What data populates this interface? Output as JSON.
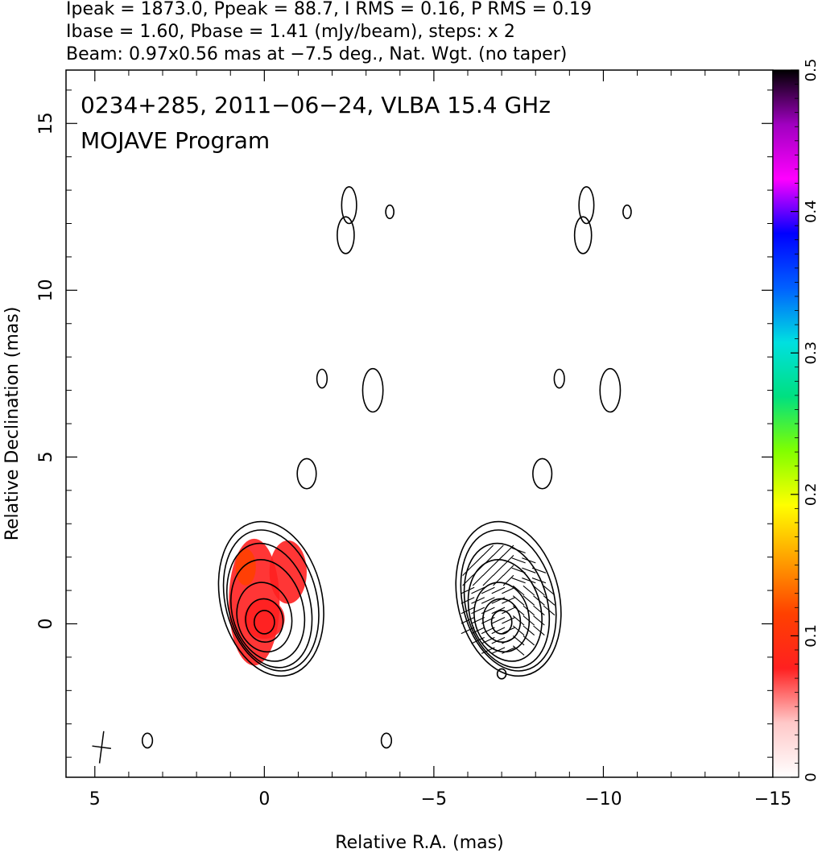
{
  "header": {
    "line1": "Ipeak = 1873.0, Ppeak = 88.7, I RMS = 0.16, P RMS = 0.19",
    "line2": "Ibase = 1.60, Pbase = 1.41 (mJy/beam), steps: x 2",
    "line3": "Beam: 0.97x0.56 mas at −7.5 deg., Nat. Wgt. (no taper)"
  },
  "plot_text": {
    "source_line": "0234+285, 2011−06−24, VLBA 15.4 GHz",
    "program_line": "MOJAVE Program"
  },
  "chart_data": {
    "type": "heatmap",
    "title": "0234+285, 2011−06−24, VLBA 15.4 GHz",
    "subtitle": "MOJAVE Program",
    "xlabel": "Relative R.A. (mas)",
    "ylabel": "Relative Declination (mas)",
    "xlim": [
      5.85,
      -15.0
    ],
    "ylim": [
      -4.6,
      16.6
    ],
    "x_ticks": [
      5,
      0,
      -5,
      -10,
      -15
    ],
    "x_tick_labels": [
      "5",
      "0",
      "−5",
      "−10",
      "−15"
    ],
    "y_ticks": [
      0,
      5,
      10,
      15
    ],
    "y_tick_labels": [
      "0",
      "5",
      "10",
      "15"
    ],
    "grid": false,
    "colorbar": {
      "placement": "right",
      "range": [
        0,
        0.5
      ],
      "ticks": [
        0,
        0.1,
        0.2,
        0.3,
        0.4,
        0.5
      ],
      "tick_labels": [
        "0",
        "0.1",
        "0.2",
        "0.3",
        "0.4",
        "0.5"
      ],
      "colors": [
        "#ffffff",
        "#ffc8c8",
        "#ff2020",
        "#ff4000",
        "#ffa000",
        "#ffff00",
        "#80ff00",
        "#00e080",
        "#00e0e0",
        "#0060ff",
        "#0000ff",
        "#ff00ff",
        "#a000c0",
        "#000000"
      ]
    },
    "panels": [
      {
        "name": "Stokes I contours with fractional polarization",
        "x_offset": 0,
        "contours": [
          {
            "cx": 0.0,
            "cy": 0.05,
            "rx": 0.3,
            "ry": 0.35,
            "angle": 0
          },
          {
            "cx": 0.0,
            "cy": 0.1,
            "rx": 0.55,
            "ry": 0.65,
            "angle": -8
          },
          {
            "cx": 0.0,
            "cy": 0.2,
            "rx": 0.8,
            "ry": 1.05,
            "angle": -12
          },
          {
            "cx": -0.1,
            "cy": 0.4,
            "rx": 1.05,
            "ry": 1.55,
            "angle": -15
          },
          {
            "cx": -0.15,
            "cy": 0.55,
            "rx": 1.2,
            "ry": 1.9,
            "angle": -15
          },
          {
            "cx": -0.2,
            "cy": 0.7,
            "rx": 1.35,
            "ry": 2.15,
            "angle": -14
          },
          {
            "cx": -0.2,
            "cy": 0.75,
            "rx": 1.5,
            "ry": 2.35,
            "angle": -13
          }
        ],
        "fractional_polarization": [
          {
            "cx": 0.3,
            "cy": 0.65,
            "rx": 0.75,
            "ry": 1.9,
            "value": 0.09
          },
          {
            "cx": -0.7,
            "cy": 1.55,
            "rx": 0.55,
            "ry": 0.95,
            "value": 0.08
          },
          {
            "cx": 0.0,
            "cy": 0.15,
            "rx": 0.6,
            "ry": 0.6,
            "value": 0.07
          },
          {
            "cx": 0.55,
            "cy": 1.7,
            "rx": 0.3,
            "ry": 0.55,
            "value": 0.12
          }
        ]
      },
      {
        "name": "Stokes I contours with EVPA vectors",
        "x_offset": -7.0,
        "contours": [
          {
            "cx": 0.0,
            "cy": 0.05,
            "rx": 0.3,
            "ry": 0.35,
            "angle": 0
          },
          {
            "cx": 0.0,
            "cy": 0.1,
            "rx": 0.55,
            "ry": 0.65,
            "angle": -8
          },
          {
            "cx": 0.0,
            "cy": 0.2,
            "rx": 0.8,
            "ry": 1.05,
            "angle": -12
          },
          {
            "cx": -0.1,
            "cy": 0.4,
            "rx": 1.05,
            "ry": 1.55,
            "angle": -15
          },
          {
            "cx": -0.15,
            "cy": 0.55,
            "rx": 1.2,
            "ry": 1.9,
            "angle": -15
          },
          {
            "cx": -0.2,
            "cy": 0.7,
            "rx": 1.35,
            "ry": 2.15,
            "angle": -14
          },
          {
            "cx": -0.2,
            "cy": 0.75,
            "rx": 1.5,
            "ry": 2.35,
            "angle": -13
          }
        ],
        "evpa_region": {
          "x_min": -1.4,
          "x_max": 1.3,
          "y_min": -1.1,
          "y_max": 2.4
        }
      }
    ],
    "faint_features": [
      {
        "x": -2.5,
        "y": 12.55,
        "rx": 0.22,
        "ry": 0.55
      },
      {
        "x": -2.4,
        "y": 11.65,
        "rx": 0.25,
        "ry": 0.55
      },
      {
        "x": -3.7,
        "y": 12.35,
        "rx": 0.12,
        "ry": 0.2
      },
      {
        "x": -1.7,
        "y": 7.35,
        "rx": 0.15,
        "ry": 0.28
      },
      {
        "x": -3.2,
        "y": 7.0,
        "rx": 0.3,
        "ry": 0.65
      },
      {
        "x": -1.25,
        "y": 4.5,
        "rx": 0.28,
        "ry": 0.45
      },
      {
        "x": 3.45,
        "y": -3.5,
        "rx": 0.15,
        "ry": 0.22
      },
      {
        "x": -3.6,
        "y": -3.5,
        "rx": 0.15,
        "ry": 0.22
      },
      {
        "x": -9.5,
        "y": 12.55,
        "rx": 0.22,
        "ry": 0.55
      },
      {
        "x": -9.4,
        "y": 11.65,
        "rx": 0.25,
        "ry": 0.55
      },
      {
        "x": -10.7,
        "y": 12.35,
        "rx": 0.12,
        "ry": 0.2
      },
      {
        "x": -8.7,
        "y": 7.35,
        "rx": 0.15,
        "ry": 0.28
      },
      {
        "x": -10.2,
        "y": 7.0,
        "rx": 0.3,
        "ry": 0.65
      },
      {
        "x": -8.2,
        "y": 4.5,
        "rx": 0.28,
        "ry": 0.45
      },
      {
        "x": -7.0,
        "y": -1.5,
        "rx": 0.13,
        "ry": 0.15
      }
    ],
    "beam": {
      "x": 4.8,
      "y": -3.7,
      "major": 0.97,
      "minor": 0.56,
      "pa_deg": -7.5
    }
  }
}
